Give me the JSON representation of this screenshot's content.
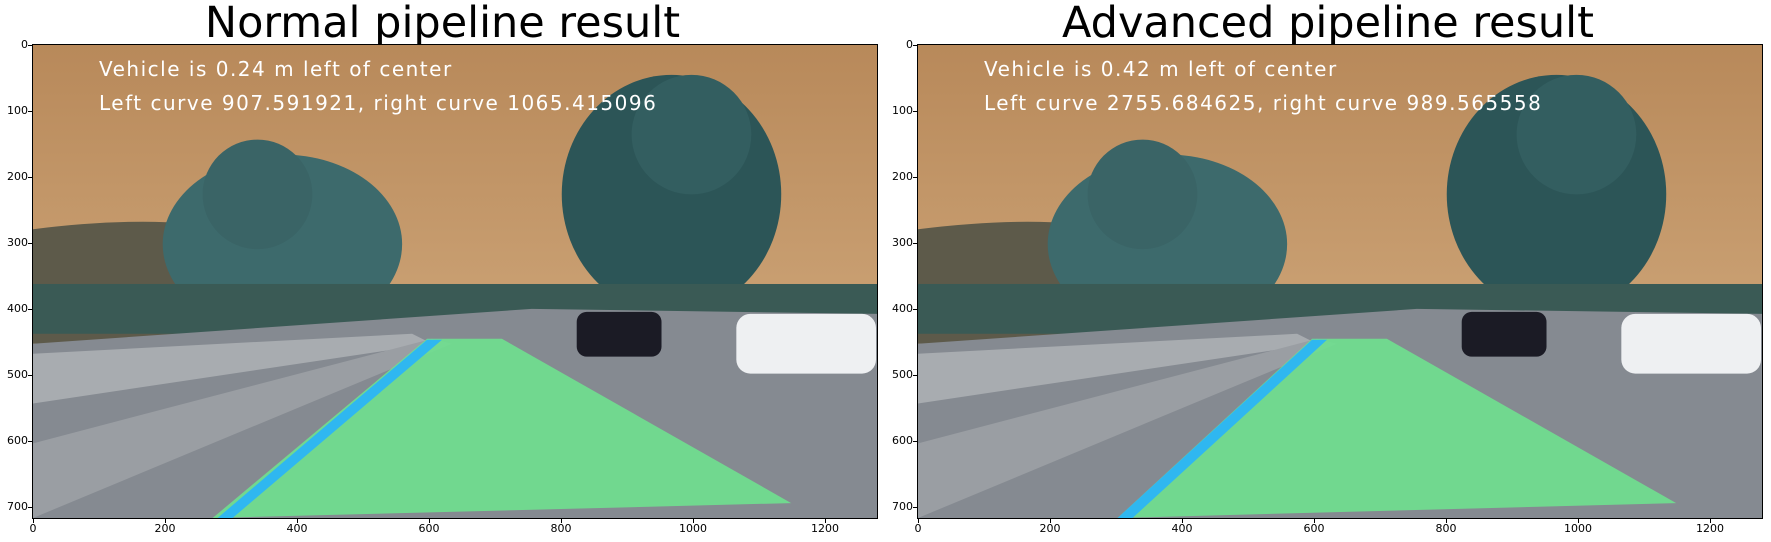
{
  "panels": [
    {
      "title": "Normal pipeline result",
      "overlay_line1": "Vehicle is 0.24 m left of center",
      "overlay_line2": "Left curve 907.591921, right curve 1065.415096"
    },
    {
      "title": "Advanced pipeline result",
      "overlay_line1": "Vehicle is 0.42 m left of center",
      "overlay_line2": "Left curve 2755.684625, right curve 989.565558"
    }
  ],
  "axes": {
    "y_ticks": [
      "0",
      "100",
      "200",
      "300",
      "400",
      "500",
      "600",
      "700"
    ],
    "x_ticks": [
      "0",
      "200",
      "400",
      "600",
      "800",
      "1000",
      "1200"
    ]
  },
  "colors": {
    "sky": "#c49565",
    "lane_fill": "#6fe08f",
    "lane_line": "#2fb7f0",
    "road": "#8a8f96",
    "trees": "#2f5a5c"
  }
}
